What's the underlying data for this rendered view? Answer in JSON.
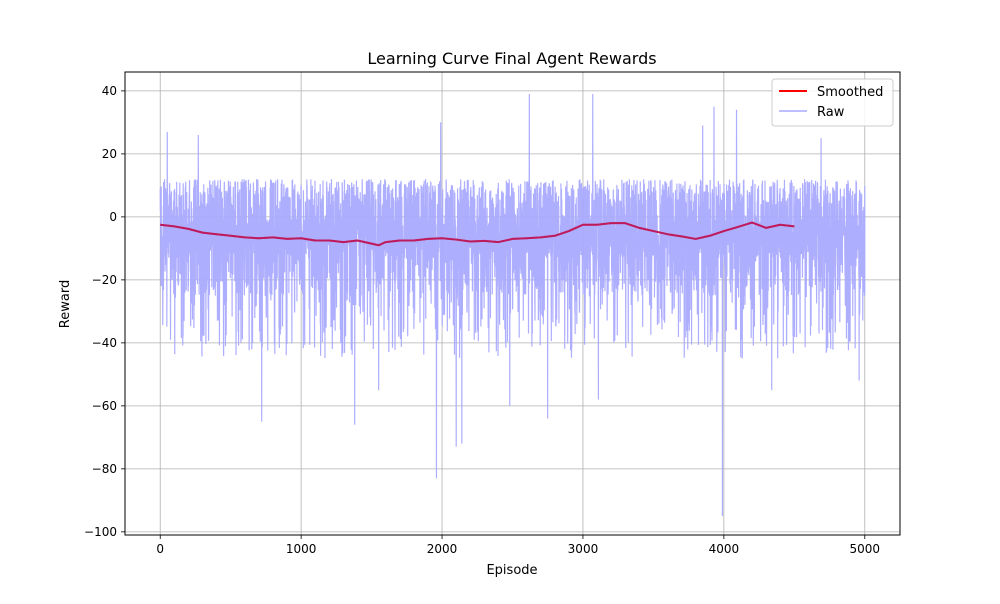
{
  "chart_data": {
    "type": "line",
    "title": "Learning Curve Final Agent Rewards",
    "xlabel": "Episode",
    "ylabel": "Reward",
    "xlim": [
      -250,
      5250
    ],
    "ylim": [
      -101,
      46
    ],
    "xticks": [
      0,
      1000,
      2000,
      3000,
      4000,
      5000
    ],
    "yticks": [
      -100,
      -80,
      -60,
      -40,
      -20,
      0,
      20,
      40
    ],
    "grid": true,
    "legend_position": "upper right",
    "series": [
      {
        "name": "Smoothed",
        "color": "#ff0000",
        "x": [
          0,
          100,
          200,
          300,
          400,
          500,
          600,
          700,
          800,
          900,
          1000,
          1100,
          1200,
          1300,
          1400,
          1500,
          1550,
          1600,
          1700,
          1800,
          1900,
          2000,
          2100,
          2200,
          2300,
          2400,
          2500,
          2600,
          2700,
          2800,
          2900,
          3000,
          3100,
          3200,
          3300,
          3400,
          3500,
          3600,
          3700,
          3800,
          3900,
          4000,
          4100,
          4200,
          4300,
          4400,
          4500
        ],
        "values": [
          -2.5,
          -3.0,
          -3.8,
          -5.0,
          -5.5,
          -6.0,
          -6.5,
          -6.8,
          -6.5,
          -7.0,
          -6.8,
          -7.5,
          -7.5,
          -8.0,
          -7.5,
          -8.5,
          -9.0,
          -8.0,
          -7.5,
          -7.5,
          -7.0,
          -6.8,
          -7.2,
          -7.8,
          -7.6,
          -8.0,
          -7.0,
          -6.8,
          -6.5,
          -6.0,
          -4.5,
          -2.5,
          -2.5,
          -2.0,
          -2.0,
          -3.5,
          -4.5,
          -5.5,
          -6.2,
          -7.0,
          -6.0,
          -4.5,
          -3.2,
          -1.8,
          -3.5,
          -2.5,
          -3.0
        ]
      },
      {
        "name": "Raw",
        "color": "#aaaaff",
        "x_range": [
          0,
          5000
        ],
        "n_points": 5000,
        "centerline": -6,
        "typical_range": [
          -25,
          12
        ],
        "peaks": [
          {
            "x": 50,
            "y": 27
          },
          {
            "x": 270,
            "y": 26
          },
          {
            "x": 720,
            "y": -65
          },
          {
            "x": 1380,
            "y": -66
          },
          {
            "x": 1550,
            "y": -55
          },
          {
            "x": 1960,
            "y": -83
          },
          {
            "x": 1990,
            "y": 30
          },
          {
            "x": 2100,
            "y": -73
          },
          {
            "x": 2140,
            "y": -72
          },
          {
            "x": 2480,
            "y": -60
          },
          {
            "x": 2620,
            "y": 39
          },
          {
            "x": 2750,
            "y": -64
          },
          {
            "x": 3070,
            "y": 39
          },
          {
            "x": 3110,
            "y": -58
          },
          {
            "x": 3850,
            "y": 29
          },
          {
            "x": 3930,
            "y": 35
          },
          {
            "x": 3990,
            "y": -95
          },
          {
            "x": 4090,
            "y": 34
          },
          {
            "x": 4340,
            "y": -55
          },
          {
            "x": 4690,
            "y": 25
          },
          {
            "x": 4960,
            "y": -52
          }
        ]
      }
    ]
  }
}
